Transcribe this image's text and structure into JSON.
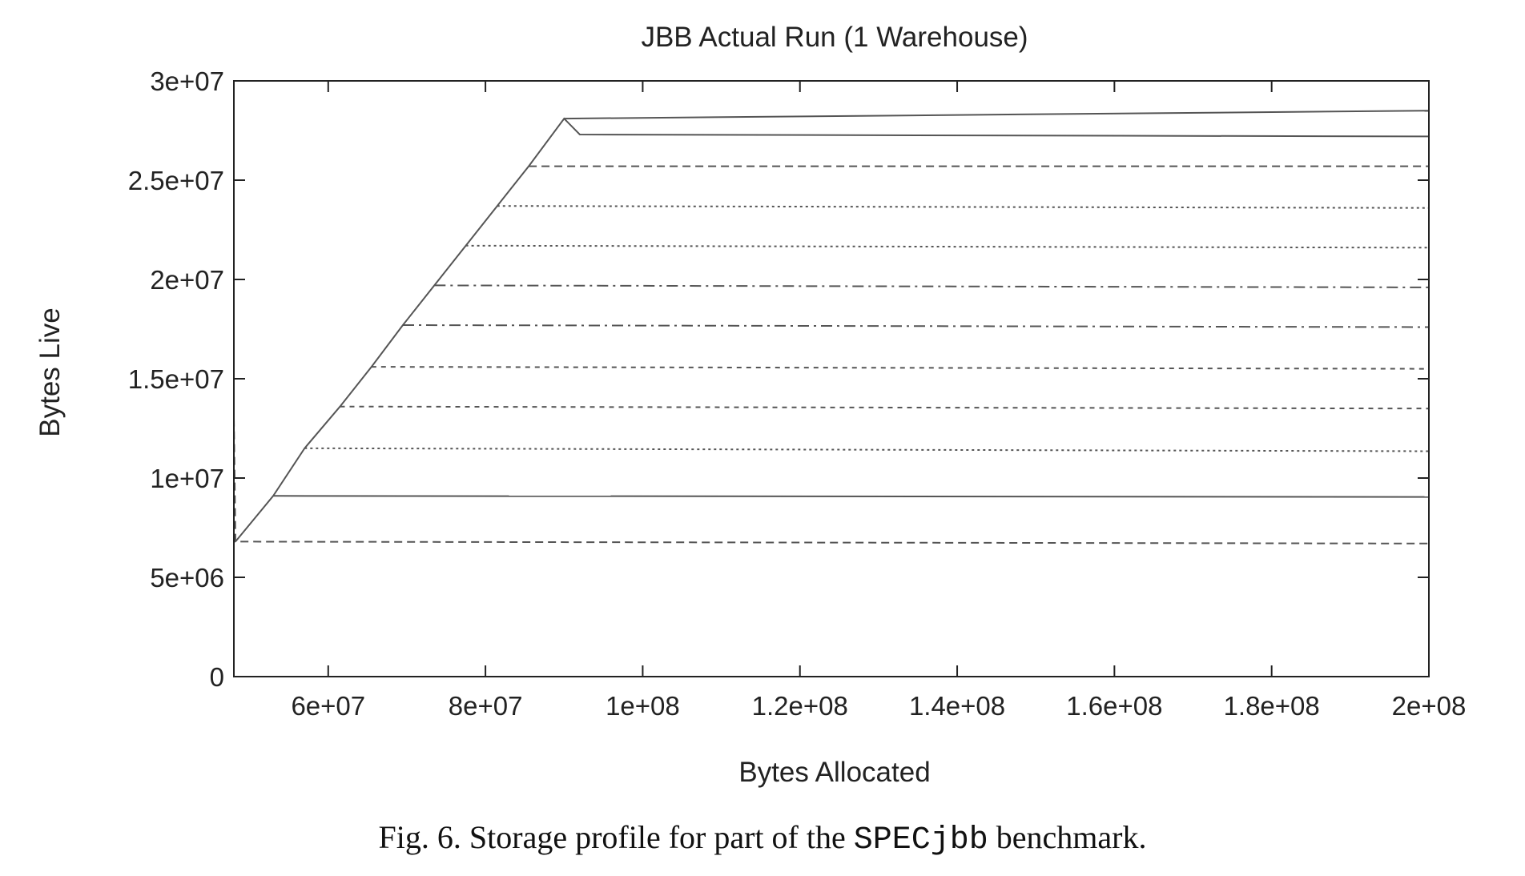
{
  "chart_data": {
    "type": "line",
    "title": "JBB Actual Run (1 Warehouse)",
    "xlabel": "Bytes Allocated",
    "ylabel": "Bytes Live",
    "xlim": [
      48000000,
      200000000
    ],
    "ylim": [
      0,
      30000000
    ],
    "xticks": [
      60000000,
      80000000,
      100000000,
      120000000,
      140000000,
      160000000,
      180000000,
      200000000
    ],
    "xtick_labels": [
      "6e+07",
      "8e+07",
      "1e+08",
      "1.2e+08",
      "1.4e+08",
      "1.6e+08",
      "1.8e+08",
      "2e+08"
    ],
    "yticks": [
      0,
      5000000,
      10000000,
      15000000,
      20000000,
      25000000,
      30000000
    ],
    "ytick_labels": [
      "0",
      "5e+06",
      "1e+07",
      "1.5e+07",
      "2e+07",
      "2.5e+07",
      "3e+07"
    ],
    "grid": false,
    "legend": "none",
    "series": [
      {
        "x": [
          48000000,
          48200000,
          200000000
        ],
        "y": [
          13000000,
          6800000,
          6700000
        ],
        "style": "dashed"
      },
      {
        "x": [
          53000000,
          200000000
        ],
        "y": [
          9100000,
          9050000
        ],
        "style": "solid"
      },
      {
        "x": [
          57000000,
          200000000
        ],
        "y": [
          11500000,
          11350000
        ],
        "style": "dotted"
      },
      {
        "x": [
          61500000,
          200000000
        ],
        "y": [
          13600000,
          13500000
        ],
        "style": "dashed-fine"
      },
      {
        "x": [
          65500000,
          200000000
        ],
        "y": [
          15600000,
          15500000
        ],
        "style": "dashed-fine"
      },
      {
        "x": [
          69500000,
          200000000
        ],
        "y": [
          17700000,
          17600000
        ],
        "style": "dash-dot"
      },
      {
        "x": [
          73500000,
          200000000
        ],
        "y": [
          19700000,
          19600000
        ],
        "style": "dash-dot"
      },
      {
        "x": [
          77500000,
          200000000
        ],
        "y": [
          21700000,
          21600000
        ],
        "style": "dotted"
      },
      {
        "x": [
          81500000,
          200000000
        ],
        "y": [
          23700000,
          23600000
        ],
        "style": "dotted"
      },
      {
        "x": [
          85500000,
          200000000
        ],
        "y": [
          25700000,
          25700000
        ],
        "style": "dashed"
      },
      {
        "x": [
          48200000,
          53000000,
          57000000,
          61500000,
          65500000,
          69500000,
          73500000,
          77500000,
          81500000,
          85500000,
          90000000,
          92000000,
          200000000
        ],
        "y": [
          6800000,
          9100000,
          11500000,
          13600000,
          15600000,
          17700000,
          19700000,
          21700000,
          23700000,
          25700000,
          28100000,
          27300000,
          27200000
        ],
        "style": "solid"
      },
      {
        "x": [
          90000000,
          200000000
        ],
        "y": [
          28100000,
          28500000
        ],
        "style": "solid"
      }
    ]
  },
  "caption": {
    "prefix": "Fig. 6. Storage profile for part of the ",
    "mono": "SPECjbb",
    "suffix": " benchmark."
  }
}
